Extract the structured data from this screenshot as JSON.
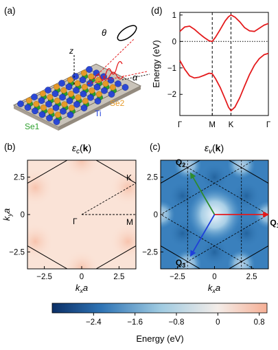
{
  "panels": {
    "a": {
      "label": "(a)",
      "annotations": {
        "z": "z",
        "theta": "θ",
        "alpha": "α",
        "se2": "Se2",
        "ti": "Ti",
        "se1": "Se1"
      },
      "colors": {
        "se1": "#2ca02c",
        "se2": "#e69a28",
        "ti": "#1f3fd9",
        "beam": "#e41a1c"
      }
    },
    "b": {
      "label": "(b)",
      "title_prefix": "ε",
      "title_sub": "c",
      "title_k": "k",
      "points": {
        "gamma": "Γ",
        "k": "K",
        "m": "M"
      }
    },
    "c": {
      "label": "(c)",
      "title_prefix": "ε",
      "title_sub": "v",
      "title_k": "k",
      "vectors": [
        "Q",
        "Q",
        "Q"
      ],
      "vector_subs": [
        "2",
        "1",
        "3"
      ],
      "vector_colors": [
        "#2e8b2e",
        "#e41a1c",
        "#1f3fd9"
      ]
    },
    "d": {
      "label": "(d)"
    },
    "colorbar": {
      "label": "Energy (eV)",
      "ticks": [
        "−2.4",
        "−1.6",
        "−0.8",
        "0",
        "0.8"
      ],
      "range": [
        -3.2,
        0.95
      ],
      "colors": [
        "#0b2f66",
        "#2f74b5",
        "#9ecae1",
        "#f4ede9",
        "#f6b096"
      ]
    }
  },
  "chart_data": [
    {
      "type": "line",
      "panel": "d",
      "ylabel": "Energy (eV)",
      "xticklabels": [
        "Γ",
        "M",
        "K",
        "Γ"
      ],
      "x_ticks": [
        0,
        1,
        1.577,
        2.732
      ],
      "ylim": [
        -2.8,
        1.1
      ],
      "yticks": [
        "1",
        "0",
        "−1",
        "−2"
      ],
      "ytick_values": [
        1,
        0,
        -1,
        -2
      ],
      "series": [
        {
          "x": [
            0,
            0.15,
            0.3,
            0.45,
            0.6,
            0.75,
            0.9,
            1.0,
            1.1,
            1.25,
            1.4,
            1.5,
            1.577,
            1.7,
            1.85,
            2.0,
            2.15,
            2.3,
            2.45,
            2.6,
            2.732
          ],
          "y": [
            0.38,
            0.55,
            0.58,
            0.46,
            0.3,
            0.15,
            0.03,
            0.0,
            0.16,
            0.46,
            0.78,
            0.93,
            1.0,
            0.92,
            0.74,
            0.52,
            0.4,
            0.38,
            0.5,
            0.62,
            0.68
          ],
          "color": "#e41a1c"
        },
        {
          "x": [
            0,
            0.15,
            0.3,
            0.45,
            0.6,
            0.75,
            0.9,
            1.0,
            1.1,
            1.25,
            1.4,
            1.5,
            1.577,
            1.7,
            1.85,
            2.0,
            2.15,
            2.3,
            2.45,
            2.6,
            2.732
          ],
          "y": [
            -0.72,
            -1.05,
            -1.3,
            -1.38,
            -1.35,
            -1.28,
            -1.2,
            -1.22,
            -1.4,
            -1.75,
            -2.18,
            -2.48,
            -2.62,
            -2.48,
            -2.12,
            -1.68,
            -1.25,
            -0.9,
            -0.65,
            -0.5,
            -0.45
          ],
          "color": "#e41a1c"
        }
      ],
      "hlines": [
        0
      ],
      "vlines": [
        1,
        1.577
      ]
    },
    {
      "type": "heatmap",
      "panel": "b",
      "xlabel": "kxa",
      "ylabel": "kya",
      "xlim": [
        -3.63,
        3.63
      ],
      "ylim": [
        -3.63,
        3.63
      ],
      "xticks": [
        "−2.5",
        "0",
        "2.5"
      ],
      "xtick_values": [
        -2.5,
        0,
        2.5
      ],
      "yticks": [
        "2.5",
        "0",
        "−2.5"
      ],
      "ytick_values": [
        2.5,
        0,
        -2.5
      ],
      "value_range": [
        0.75,
        0.9
      ]
    },
    {
      "type": "heatmap",
      "panel": "c",
      "xlabel": "kxa",
      "ylabel": "",
      "xlim": [
        -3.63,
        3.63
      ],
      "ylim": [
        -3.63,
        3.63
      ],
      "xticks": [
        "−2.5",
        "0",
        "2.5"
      ],
      "xtick_values": [
        -2.5,
        0,
        2.5
      ],
      "yticks": [
        "2.5",
        "0",
        "−2.5"
      ],
      "ytick_values": [
        2.5,
        0,
        -2.5
      ],
      "value_range": [
        -3.2,
        -0.6
      ]
    }
  ]
}
